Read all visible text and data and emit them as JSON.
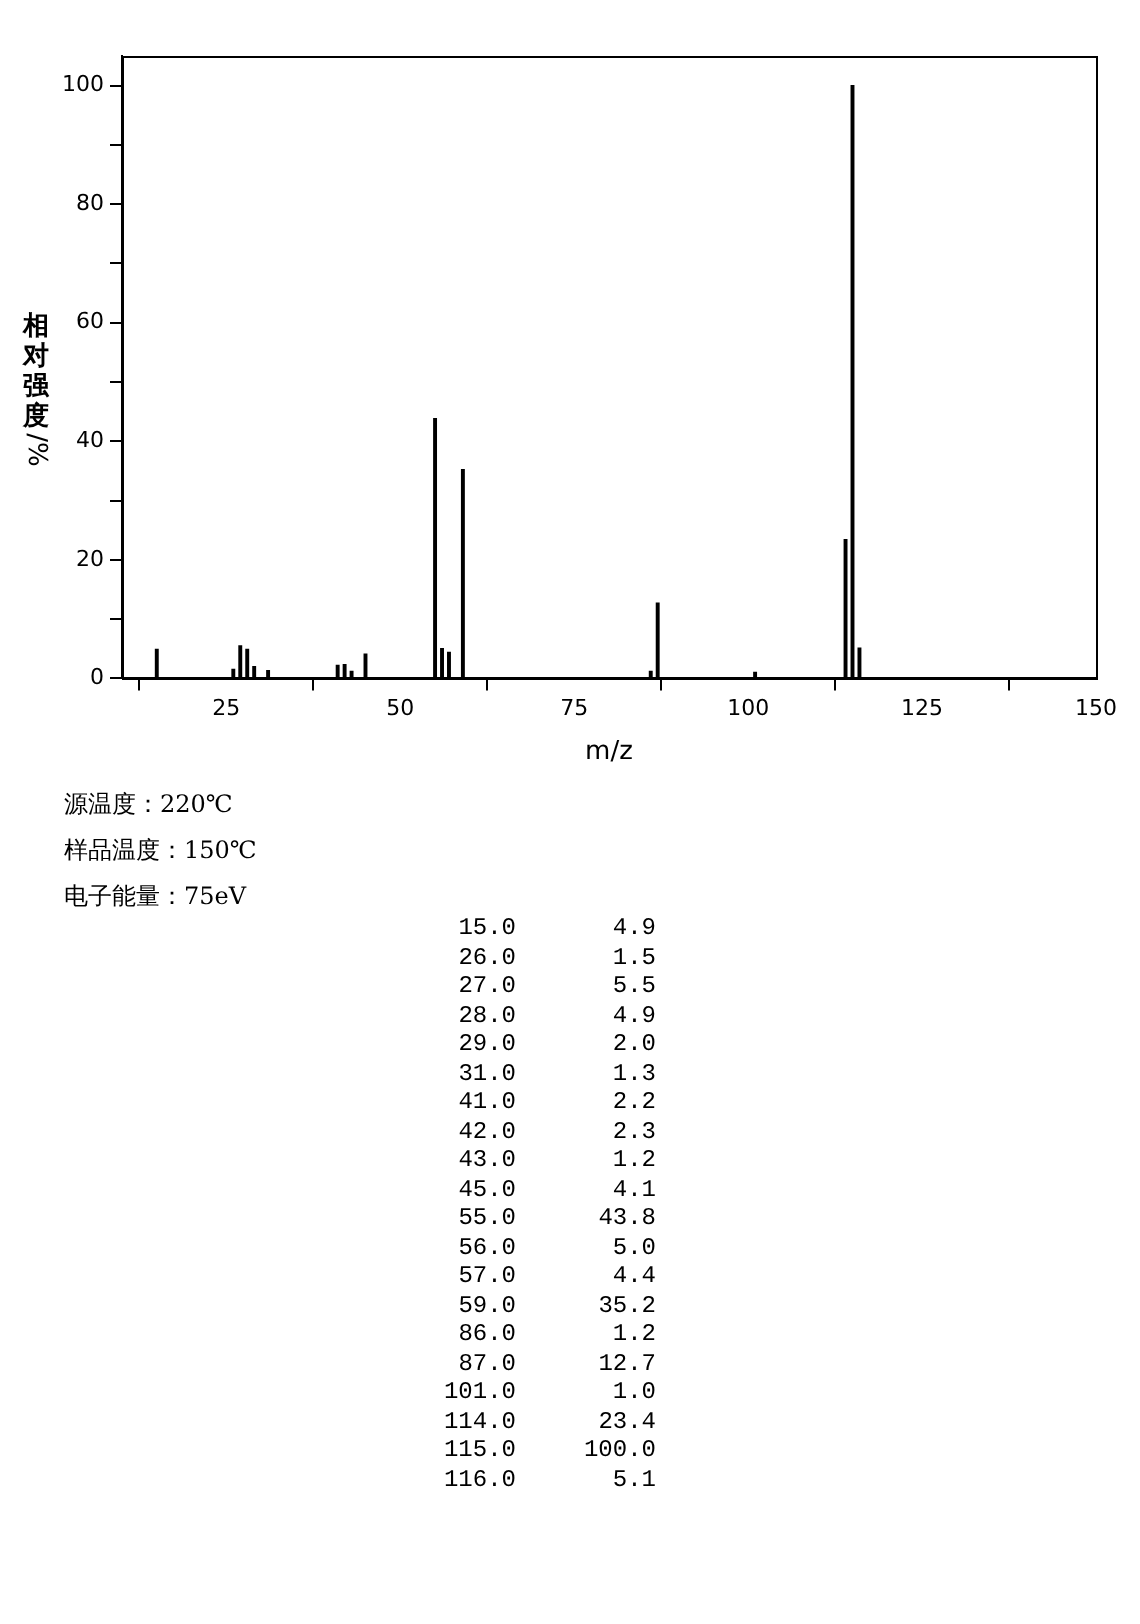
{
  "chart_data": [
    {
      "type": "bar",
      "xlabel": "m/z",
      "ylabel": "相对强度/%",
      "x": [
        15,
        26,
        27,
        28,
        29,
        31,
        41,
        42,
        43,
        45,
        55,
        56,
        57,
        59,
        86,
        87,
        101,
        114,
        115,
        116
      ],
      "series": [
        {
          "color": "#000000",
          "values": [
            4.9,
            1.5,
            5.5,
            4.9,
            2.0,
            1.3,
            2.2,
            2.3,
            1.2,
            4.1,
            43.8,
            5.0,
            4.4,
            35.2,
            1.2,
            12.7,
            1.0,
            23.4,
            100.0,
            5.1
          ]
        }
      ],
      "xlim": [
        10,
        150
      ],
      "xticks": [
        25,
        50,
        75,
        100,
        125,
        150
      ],
      "ylim": [
        0,
        105
      ],
      "yticks": [
        0,
        {
          "value": 10,
          "label": null
        },
        20,
        {
          "value": 30,
          "label": null
        },
        40,
        {
          "value": 50,
          "label": null
        },
        60,
        {
          "value": 70,
          "label": null
        },
        80,
        {
          "value": 90,
          "label": null
        },
        100
      ],
      "grid": false,
      "legend": false,
      "annotations": [
        "源温度：220℃",
        "样品温度：150℃",
        "电子能量：75eV"
      ]
    },
    {
      "type": "other",
      "categories": [
        "15.0",
        "26.0",
        "27.0",
        "28.0",
        "29.0",
        "31.0",
        "41.0",
        "42.0",
        "43.0",
        "45.0",
        "55.0",
        "56.0",
        "57.0",
        "59.0",
        "86.0",
        "87.0",
        "101.0",
        "114.0",
        "115.0",
        "116.0"
      ],
      "values": [
        4.9,
        1.5,
        5.5,
        4.9,
        2.0,
        1.3,
        2.2,
        2.3,
        1.2,
        4.1,
        43.8,
        5.0,
        4.4,
        35.2,
        1.2,
        12.7,
        1.0,
        23.4,
        100.0,
        5.1
      ],
      "value_labels": [
        "4.9",
        "1.5",
        "5.5",
        "4.9",
        "2.0",
        "1.3",
        "2.2",
        "2.3",
        "1.2",
        "4.1",
        "43.8",
        "5.0",
        "4.4",
        "35.2",
        "1.2",
        "12.7",
        "1.0",
        "23.4",
        "100.0",
        "5.1"
      ]
    }
  ]
}
